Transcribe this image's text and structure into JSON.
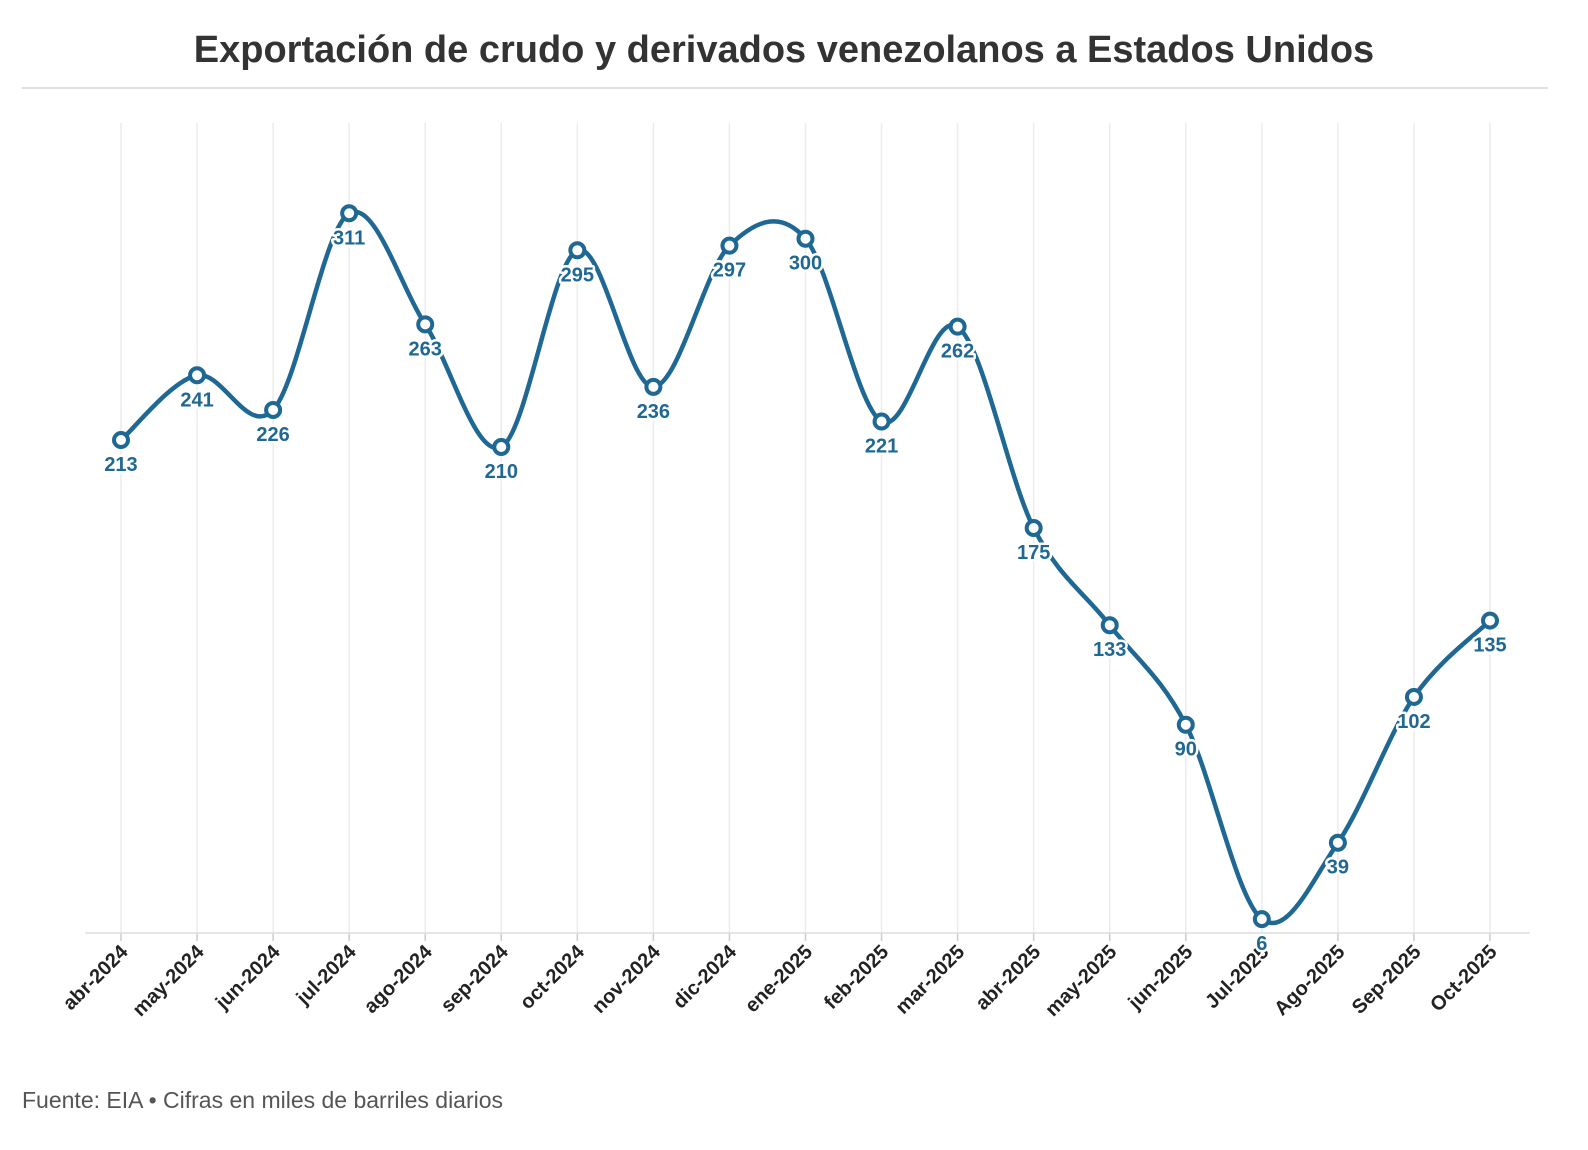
{
  "chart_data": {
    "type": "line",
    "title": "Exportación de crudo y derivados venezolanos a Estados Unidos",
    "source": "Fuente: EIA • Cifras en miles de barriles diarios",
    "categories": [
      "abr-2024",
      "may-2024",
      "jun-2024",
      "jul-2024",
      "ago-2024",
      "sep-2024",
      "oct-2024",
      "nov-2024",
      "dic-2024",
      "ene-2025",
      "feb-2025",
      "mar-2025",
      "abr-2025",
      "may-2025",
      "jun-2025",
      "Jul-2025",
      "Ago-2025",
      "Sep-2025",
      "Oct-2025"
    ],
    "values": [
      213,
      241,
      226,
      311,
      263,
      210,
      295,
      236,
      297,
      300,
      221,
      262,
      175,
      133,
      90,
      6,
      39,
      102,
      135
    ],
    "color": "#1f6894",
    "ylim": [
      0,
      350
    ],
    "grid": true,
    "smooth": true
  }
}
